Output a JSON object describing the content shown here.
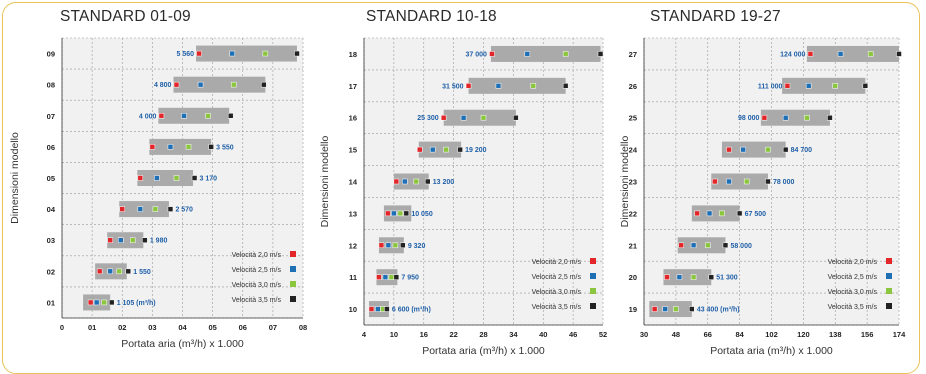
{
  "legend": [
    {
      "label": "Velocità 2,0 m/s",
      "color": "#e2262a"
    },
    {
      "label": "Velocità 2,5 m/s",
      "color": "#1f6fb5"
    },
    {
      "label": "Velocità 3,0 m/s",
      "color": "#8cc63f"
    },
    {
      "label": "Velocità 3,5 m/s",
      "color": "#222222"
    }
  ],
  "chart_data": [
    {
      "type": "bar",
      "title": "STANDARD 01-09",
      "xlabel": "Portata aria (m³/h) x 1.000",
      "ylabel": "Dimensioni modello",
      "xlim": [
        0,
        8
      ],
      "xticks": [
        "0",
        "01",
        "02",
        "03",
        "04",
        "05",
        "06",
        "07",
        "08"
      ],
      "categories": [
        "01",
        "02",
        "03",
        "04",
        "05",
        "06",
        "07",
        "08",
        "09"
      ],
      "series": [
        {
          "name": "Velocità 2,0 m/s",
          "values": [
            0.95,
            1.25,
            1.6,
            2.0,
            2.6,
            3.0,
            3.3,
            3.8,
            4.55
          ]
        },
        {
          "name": "Velocità 2,5 m/s",
          "values": [
            1.15,
            1.6,
            1.95,
            2.6,
            3.15,
            3.6,
            4.05,
            4.6,
            5.65
          ]
        },
        {
          "name": "Velocità 3,0 m/s",
          "values": [
            1.4,
            1.9,
            2.35,
            3.1,
            3.8,
            4.2,
            4.85,
            5.7,
            6.75
          ]
        },
        {
          "name": "Velocità 3,5 m/s",
          "values": [
            1.65,
            2.2,
            2.75,
            3.6,
            4.4,
            4.95,
            5.6,
            6.7,
            7.8
          ]
        }
      ],
      "ranges": [
        [
          0.7,
          1.6
        ],
        [
          1.1,
          2.15
        ],
        [
          1.5,
          2.7
        ],
        [
          1.9,
          3.55
        ],
        [
          2.5,
          4.35
        ],
        [
          2.9,
          4.95
        ],
        [
          3.2,
          5.55
        ],
        [
          3.7,
          6.75
        ],
        [
          4.45,
          7.8
        ]
      ],
      "end_labels": [
        "1 105 (m³/h)",
        "1 550",
        "1 980",
        "2 570",
        "3 170",
        "3 550",
        "4 000",
        "4 800",
        "5 560"
      ],
      "label_side": [
        "right",
        "right",
        "right",
        "right",
        "right",
        "right",
        "left",
        "left",
        "left"
      ]
    },
    {
      "type": "bar",
      "title": "STANDARD 10-18",
      "xlabel": "Portata aria (m³/h) x 1.000",
      "ylabel": "Dimensioni modello",
      "xlim": [
        4,
        52
      ],
      "xticks": [
        "4",
        "10",
        "16",
        "22",
        "28",
        "34",
        "40",
        "46",
        "52"
      ],
      "categories": [
        "10",
        "11",
        "12",
        "13",
        "14",
        "15",
        "16",
        "17",
        "18"
      ],
      "series": [
        {
          "name": "Velocità 2,0 m/s",
          "values": [
            5.5,
            7.0,
            7.5,
            8.8,
            10.5,
            15.2,
            20.0,
            25.0,
            29.7
          ]
        },
        {
          "name": "Velocità 2,5 m/s",
          "values": [
            6.8,
            8.3,
            8.9,
            10.0,
            12.2,
            17.8,
            24.0,
            31.0,
            36.8
          ]
        },
        {
          "name": "Velocità 3,0 m/s",
          "values": [
            7.8,
            9.5,
            10.3,
            11.3,
            14.5,
            20.5,
            28.0,
            38.0,
            44.5
          ]
        },
        {
          "name": "Velocità 3,5 m/s",
          "values": [
            8.6,
            10.5,
            11.8,
            12.5,
            16.8,
            23.3,
            34.5,
            44.5,
            51.5
          ]
        }
      ],
      "ranges": [
        [
          5.0,
          9.0
        ],
        [
          6.5,
          10.7
        ],
        [
          7.0,
          12.0
        ],
        [
          8.0,
          13.5
        ],
        [
          10.0,
          17.0
        ],
        [
          15.0,
          23.5
        ],
        [
          20.0,
          34.5
        ],
        [
          25.0,
          44.5
        ],
        [
          29.5,
          51.5
        ]
      ],
      "end_labels": [
        "6 600 (m³/h)",
        "7 950",
        "9 320",
        "10 050",
        "13 200",
        "19 200",
        "25 300",
        "31 500",
        "37 000"
      ],
      "label_side": [
        "right",
        "right",
        "right",
        "right",
        "right",
        "right",
        "left",
        "left",
        "left"
      ]
    },
    {
      "type": "bar",
      "title": "STANDARD 19-27",
      "xlabel": "Portata aria (m³/h) x 1.000",
      "ylabel": "Dimensioni modello",
      "xlim": [
        30,
        174
      ],
      "xticks": [
        "30",
        "48",
        "66",
        "84",
        "102",
        "120",
        "138",
        "156",
        "174"
      ],
      "categories": [
        "19",
        "20",
        "21",
        "22",
        "23",
        "24",
        "25",
        "26",
        "27"
      ],
      "series": [
        {
          "name": "Velocità 2,0 m/s",
          "values": [
            36,
            43,
            51,
            60,
            70,
            78,
            98,
            111,
            124
          ]
        },
        {
          "name": "Velocità 2,5 m/s",
          "values": [
            42,
            50,
            58,
            67,
            78,
            86,
            110,
            123,
            141
          ]
        },
        {
          "name": "Velocità 3,0 m/s",
          "values": [
            48,
            58,
            66,
            74,
            88,
            100,
            122,
            138,
            158
          ]
        },
        {
          "name": "Velocità 3,5 m/s",
          "values": [
            57,
            68,
            76,
            84,
            100,
            110,
            135,
            155,
            174
          ]
        }
      ],
      "ranges": [
        [
          33,
          57
        ],
        [
          41,
          68
        ],
        [
          49,
          76
        ],
        [
          57,
          84
        ],
        [
          68,
          100
        ],
        [
          74,
          110
        ],
        [
          96,
          135
        ],
        [
          108,
          155
        ],
        [
          122,
          174
        ]
      ],
      "end_labels": [
        "43 400 (m³/h)",
        "51 300",
        "58 000",
        "67 500",
        "78 000",
        "84 700",
        "98 000",
        "111 000",
        "124 000"
      ],
      "label_side": [
        "right",
        "right",
        "right",
        "right",
        "right",
        "right",
        "left",
        "left",
        "left"
      ]
    }
  ]
}
